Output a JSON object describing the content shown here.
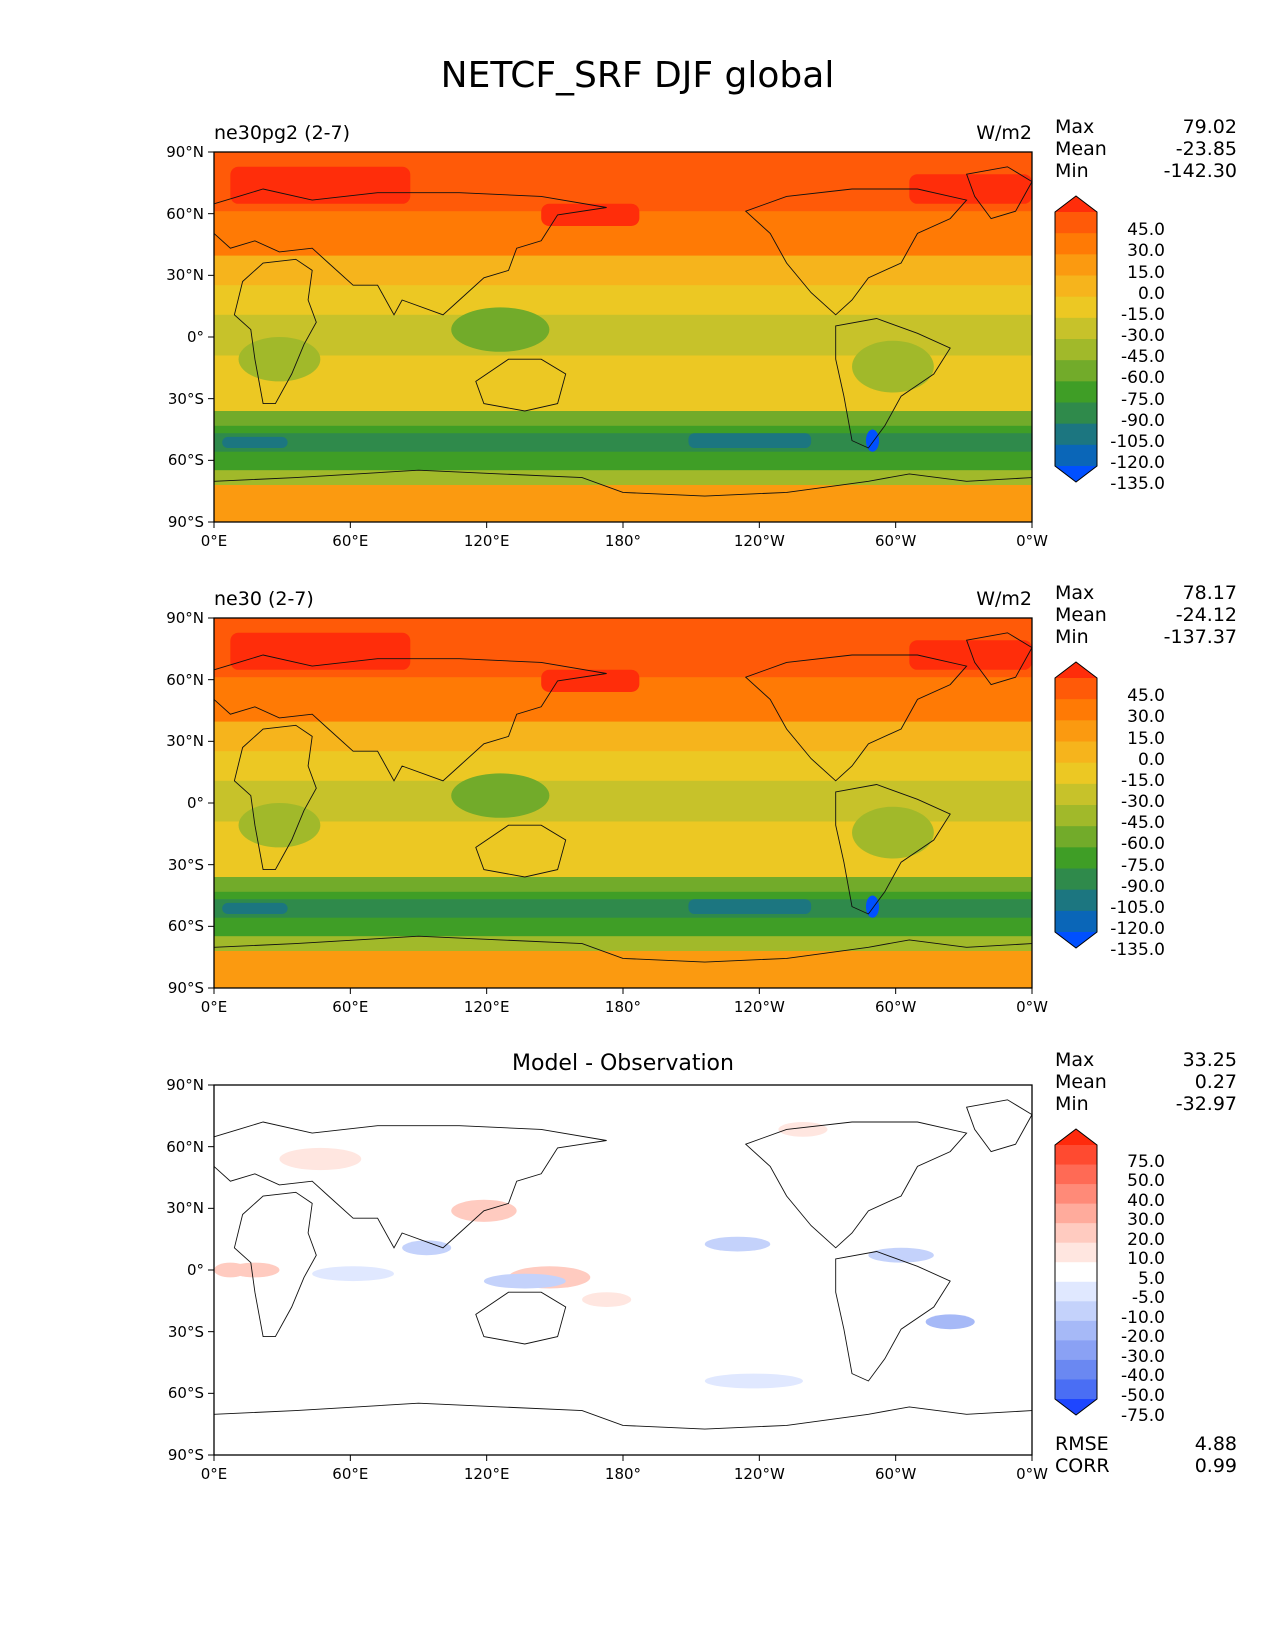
{
  "title": "NETCF_SRF DJF global",
  "chart_data": [
    {
      "type": "heatmap",
      "title": "ne30pg2 (2-7)",
      "units": "W/m2",
      "stats": {
        "max_label": "Max",
        "max": "79.02",
        "mean_label": "Mean",
        "mean": "-23.85",
        "min_label": "Min",
        "min": "-142.30"
      },
      "colorbar": {
        "levels": [
          "45.0",
          "30.0",
          "15.0",
          "0.0",
          "-15.0",
          "-30.0",
          "-45.0",
          "-60.0",
          "-75.0",
          "-90.0",
          "-105.0",
          "-120.0",
          "-135.0"
        ],
        "colors": [
          "#ff2d0a",
          "#ff5a08",
          "#ff7a05",
          "#fb9a10",
          "#f6b41c",
          "#ecc823",
          "#c7c22a",
          "#a1b92a",
          "#72ab2a",
          "#3f9e26",
          "#2f8a4b",
          "#1c7680",
          "#0a66b8",
          "#0050ff"
        ]
      },
      "x_ticks": [
        "0°E",
        "60°E",
        "120°E",
        "180°",
        "120°W",
        "60°W",
        "0°W"
      ],
      "y_ticks": [
        "90°N",
        "60°N",
        "30°N",
        "0°",
        "30°S",
        "60°S",
        "90°S"
      ]
    },
    {
      "type": "heatmap",
      "title": "ne30 (2-7)",
      "units": "W/m2",
      "stats": {
        "max_label": "Max",
        "max": "78.17",
        "mean_label": "Mean",
        "mean": "-24.12",
        "min_label": "Min",
        "min": "-137.37"
      },
      "colorbar": {
        "levels": [
          "45.0",
          "30.0",
          "15.0",
          "0.0",
          "-15.0",
          "-30.0",
          "-45.0",
          "-60.0",
          "-75.0",
          "-90.0",
          "-105.0",
          "-120.0",
          "-135.0"
        ],
        "colors": [
          "#ff2d0a",
          "#ff5a08",
          "#ff7a05",
          "#fb9a10",
          "#f6b41c",
          "#ecc823",
          "#c7c22a",
          "#a1b92a",
          "#72ab2a",
          "#3f9e26",
          "#2f8a4b",
          "#1c7680",
          "#0a66b8",
          "#0050ff"
        ]
      },
      "x_ticks": [
        "0°E",
        "60°E",
        "120°E",
        "180°",
        "120°W",
        "60°W",
        "0°W"
      ],
      "y_ticks": [
        "90°N",
        "60°N",
        "30°N",
        "0°",
        "30°S",
        "60°S",
        "90°S"
      ]
    },
    {
      "type": "heatmap",
      "title": "Model - Observation",
      "stats": {
        "max_label": "Max",
        "max": "33.25",
        "mean_label": "Mean",
        "mean": "0.27",
        "min_label": "Min",
        "min": "-32.97"
      },
      "metrics": {
        "rmse_label": "RMSE",
        "rmse": "4.88",
        "corr_label": "CORR",
        "corr": "0.99"
      },
      "colorbar": {
        "levels": [
          "75.0",
          "50.0",
          "40.0",
          "30.0",
          "20.0",
          "10.0",
          "5.0",
          "-5.0",
          "-10.0",
          "-20.0",
          "-30.0",
          "-40.0",
          "-50.0",
          "-75.0"
        ],
        "colors": [
          "#ff2a0c",
          "#ff4a30",
          "#ff6a55",
          "#ff8a78",
          "#ffab9c",
          "#ffcbc0",
          "#ffe6e0",
          "#ffffff",
          "#e0e8ff",
          "#c4d2fb",
          "#a6b9f7",
          "#8aa1f4",
          "#6a88f2",
          "#4a6ef4",
          "#1e46ff"
        ]
      },
      "x_ticks": [
        "0°E",
        "60°E",
        "120°E",
        "180°",
        "120°W",
        "60°W",
        "0°W"
      ],
      "y_ticks": [
        "90°N",
        "60°N",
        "30°N",
        "0°",
        "30°S",
        "60°S",
        "90°S"
      ]
    }
  ]
}
